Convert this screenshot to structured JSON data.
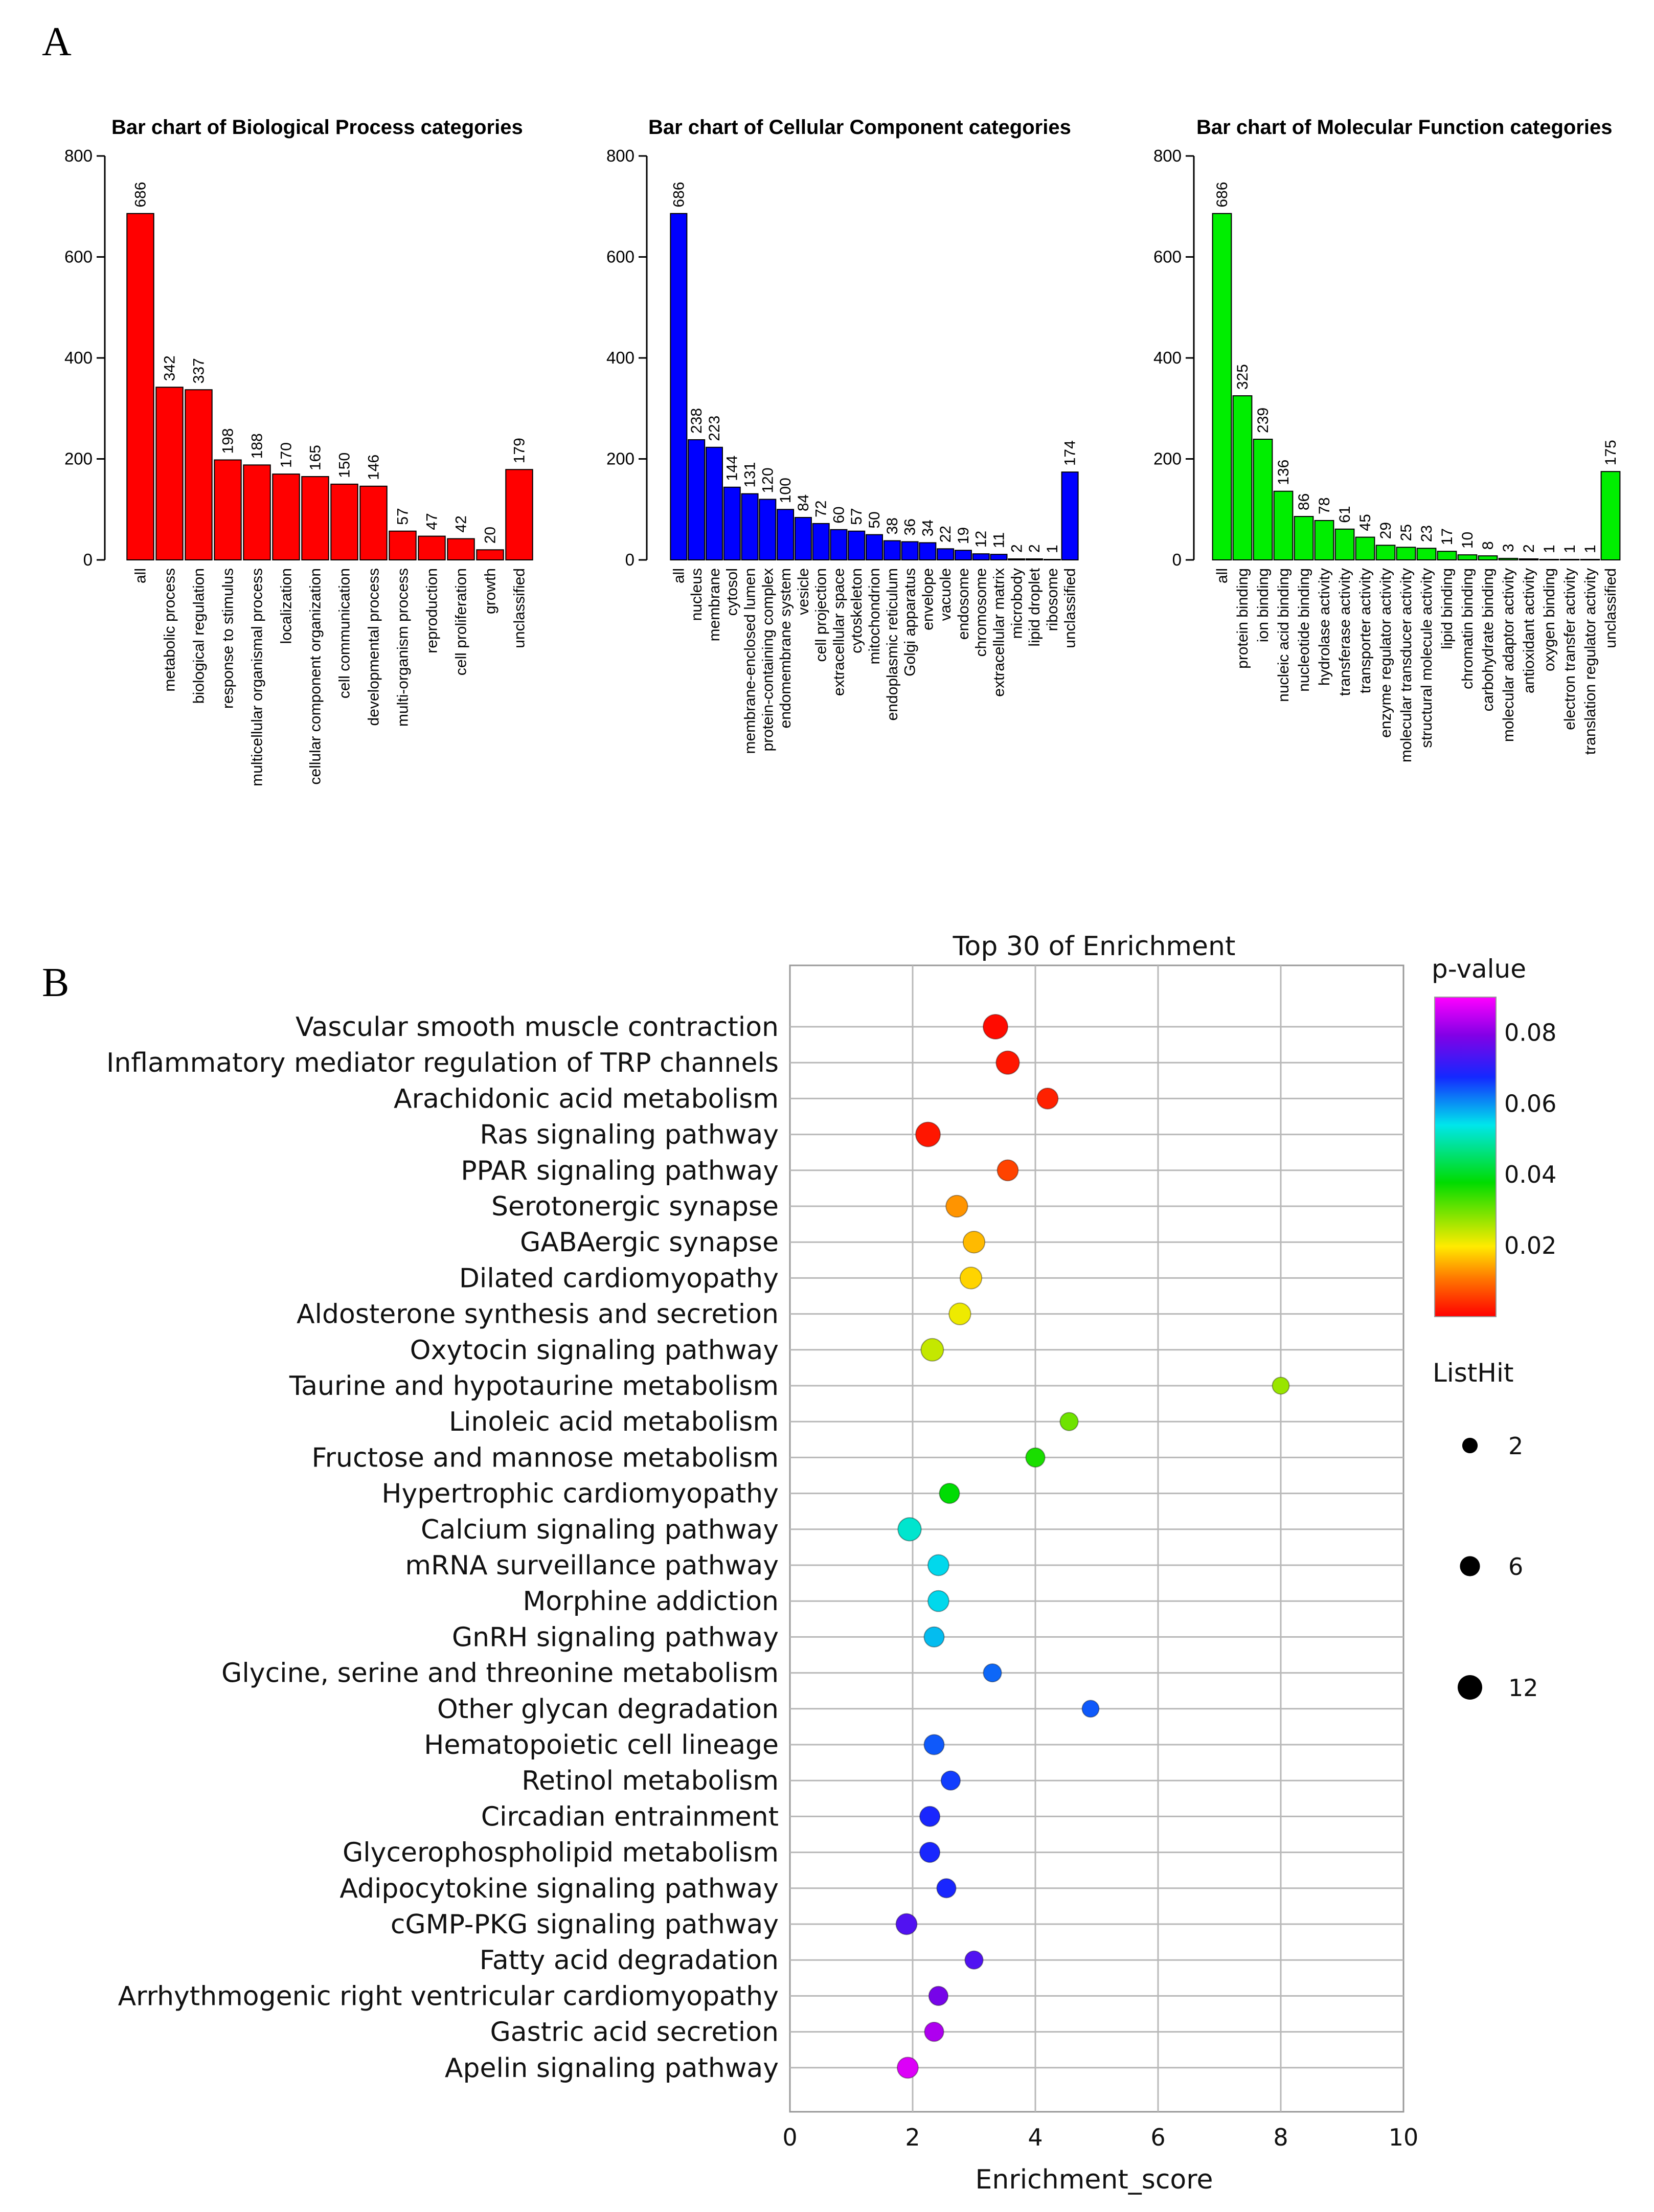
{
  "panels": {
    "a_label": "A",
    "b_label": "B"
  },
  "colors": {
    "bp": "#ff0000",
    "cc": "#0000ff",
    "mf": "#00ee00",
    "grid": "#b8b8b8"
  },
  "chart_data": [
    {
      "id": "bp",
      "type": "bar",
      "title": "Bar chart of Biological Process categories",
      "categories": [
        "all",
        "metabolic process",
        "biological regulation",
        "response to stimulus",
        "multicellular organismal process",
        "localization",
        "cellular component organization",
        "cell communication",
        "developmental process",
        "multi-organism process",
        "reproduction",
        "cell proliferation",
        "growth",
        "unclassified"
      ],
      "values": [
        686,
        342,
        337,
        198,
        188,
        170,
        165,
        150,
        146,
        57,
        47,
        42,
        20,
        179
      ],
      "ylim": [
        0,
        800
      ],
      "yticks": [
        0,
        200,
        400,
        600,
        800
      ],
      "xlabel": "",
      "ylabel": ""
    },
    {
      "id": "cc",
      "type": "bar",
      "title": "Bar chart of Cellular Component categories",
      "categories": [
        "all",
        "nucleus",
        "membrane",
        "cytosol",
        "membrane-enclosed lumen",
        "protein-containing complex",
        "endomembrane system",
        "vesicle",
        "cell projection",
        "extracellular space",
        "cytoskeleton",
        "mitochondrion",
        "endoplasmic reticulum",
        "Golgi apparatus",
        "envelope",
        "vacuole",
        "endosome",
        "chromosome",
        "extracellular matrix",
        "microbody",
        "lipid droplet",
        "ribosome",
        "unclassified"
      ],
      "values": [
        686,
        238,
        223,
        144,
        131,
        120,
        100,
        84,
        72,
        60,
        57,
        50,
        38,
        36,
        34,
        22,
        19,
        12,
        11,
        2,
        2,
        1,
        174
      ],
      "ylim": [
        0,
        800
      ],
      "yticks": [
        0,
        200,
        400,
        600,
        800
      ],
      "xlabel": "",
      "ylabel": ""
    },
    {
      "id": "mf",
      "type": "bar",
      "title": "Bar chart of Molecular Function categories",
      "categories": [
        "all",
        "protein binding",
        "ion binding",
        "nucleic acid binding",
        "nucleotide binding",
        "hydrolase activity",
        "transferase activity",
        "transporter activity",
        "enzyme regulator activity",
        "molecular transducer activity",
        "structural molecule activity",
        "lipid binding",
        "chromatin binding",
        "carbohydrate binding",
        "molecular adaptor activity",
        "antioxidant activity",
        "oxygen binding",
        "electron transfer activity",
        "translation regulator activity",
        "unclassified"
      ],
      "values": [
        686,
        325,
        239,
        136,
        86,
        78,
        61,
        45,
        29,
        25,
        23,
        17,
        10,
        8,
        3,
        2,
        1,
        1,
        1,
        175
      ],
      "ylim": [
        0,
        800
      ],
      "yticks": [
        0,
        200,
        400,
        600,
        800
      ],
      "xlabel": "",
      "ylabel": ""
    },
    {
      "id": "enrichment",
      "type": "scatter",
      "title": "Top 30 of  Enrichment",
      "xlabel": "Enrichment_score",
      "ylabel": "",
      "xlim": [
        0,
        10
      ],
      "xticks": [
        0,
        2,
        4,
        6,
        8,
        10
      ],
      "grid": true,
      "categories": [
        "Vascular smooth muscle contraction",
        "Inflammatory mediator regulation of TRP channels",
        "Arachidonic acid metabolism",
        "Ras signaling pathway",
        "PPAR signaling pathway",
        "Serotonergic synapse",
        "GABAergic synapse",
        "Dilated cardiomyopathy",
        "Aldosterone synthesis and secretion",
        "Oxytocin signaling pathway",
        "Taurine and hypotaurine metabolism",
        "Linoleic acid metabolism",
        "Fructose and mannose metabolism",
        "Hypertrophic cardiomyopathy",
        "Calcium signaling pathway",
        "mRNA surveillance pathway",
        "Morphine addiction",
        "GnRH signaling pathway",
        "Glycine, serine and threonine metabolism",
        "Other glycan degradation",
        "Hematopoietic cell lineage",
        "Retinol metabolism",
        "Circadian entrainment",
        "Glycerophospholipid metabolism",
        "Adipocytokine signaling pathway",
        "cGMP-PKG signaling pathway",
        "Fatty acid degradation",
        "Arrhythmogenic right ventricular cardiomyopathy",
        "Gastric acid secretion",
        "Apelin signaling pathway"
      ],
      "x": [
        3.35,
        3.55,
        4.2,
        2.25,
        3.55,
        2.72,
        3.0,
        2.95,
        2.77,
        2.32,
        8.0,
        4.55,
        4.0,
        2.6,
        1.95,
        2.42,
        2.42,
        2.35,
        3.3,
        4.9,
        2.35,
        2.62,
        2.28,
        2.28,
        2.55,
        1.9,
        3.0,
        2.42,
        2.35,
        1.92
      ],
      "pvalue": [
        0.001,
        0.002,
        0.003,
        0.002,
        0.006,
        0.013,
        0.016,
        0.018,
        0.021,
        0.024,
        0.027,
        0.03,
        0.036,
        0.038,
        0.052,
        0.055,
        0.055,
        0.057,
        0.063,
        0.064,
        0.064,
        0.066,
        0.068,
        0.068,
        0.068,
        0.074,
        0.074,
        0.078,
        0.083,
        0.087
      ],
      "listhit": [
        12,
        10,
        7,
        12,
        7,
        8,
        8,
        8,
        8,
        9,
        3,
        4,
        5,
        6,
        10,
        7,
        7,
        6,
        4,
        3,
        6,
        5,
        6,
        6,
        5,
        7,
        4,
        5,
        5,
        7
      ],
      "legend": {
        "pvalue_title": "p-value",
        "pvalue_ticks": [
          0.08,
          0.06,
          0.04,
          0.02
        ],
        "pvalue_tick_labels": [
          "0.08",
          "0.06",
          "0.04",
          "0.02"
        ],
        "pvalue_range": [
          0.0,
          0.09
        ],
        "listhit_title": "ListHit",
        "listhit_sizes": [
          2,
          6,
          12
        ],
        "listhit_labels": [
          "2",
          "6",
          "12"
        ],
        "placement": "right"
      }
    }
  ]
}
